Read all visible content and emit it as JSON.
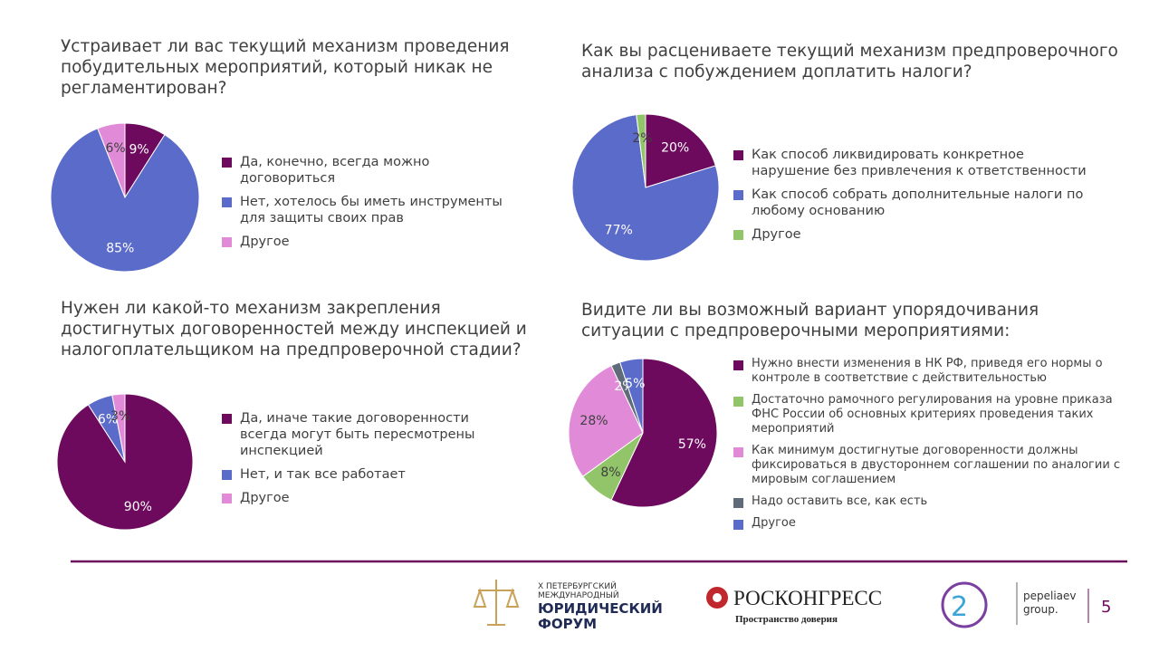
{
  "chart_data": [
    {
      "type": "pie",
      "title": "Устраивает ли вас текущий механизм проведения побудительных мероприятий, который никак не регламентирован?",
      "categories": [
        "Да, конечно, всегда можно договориться",
        "Нет, хотелось бы иметь инструменты для защиты своих прав",
        "Другое"
      ],
      "values": [
        9,
        85,
        6
      ],
      "value_labels": [
        "9%",
        "85%",
        "6%"
      ],
      "colors": [
        "#6d0a5e",
        "#5b6bc9",
        "#e08ad8"
      ]
    },
    {
      "type": "pie",
      "title": "Как вы расцениваете текущий механизм предпроверочного анализа с побуждением доплатить налоги?",
      "categories": [
        "Как способ ликвидировать конкретное нарушение без привлечения к ответственности",
        "Как способ собрать дополнительные налоги по любому основанию",
        "Другое"
      ],
      "values": [
        20,
        77,
        2
      ],
      "value_labels": [
        "20%",
        "77%",
        "2%"
      ],
      "colors": [
        "#6d0a5e",
        "#5b6bc9",
        "#92c46a"
      ]
    },
    {
      "type": "pie",
      "title": "Нужен ли какой-то механизм закрепления достигнутых договоренностей между инспекцией и налогоплательщиком на предпроверочной стадии?",
      "categories": [
        "Да, иначе такие договоренности всегда могут быть пересмотрены инспекцией",
        "Нет, и так все работает",
        "Другое"
      ],
      "values": [
        90,
        6,
        3
      ],
      "value_labels": [
        "90%",
        "6%",
        "3%"
      ],
      "colors": [
        "#6d0a5e",
        "#5b6bc9",
        "#e08ad8"
      ]
    },
    {
      "type": "pie",
      "title": "Видите ли вы возможный вариант упорядочивания ситуации с предпроверочными мероприятиями:",
      "categories": [
        "Нужно внести изменения в НК РФ, приведя его нормы о контроле в соответствие с действительностью",
        "Достаточно рамочного регулирования на уровне приказа ФНС России об основных критериях проведения таких мероприятий",
        "Как минимум достигнутые договоренности должны фиксироваться в двустороннем соглашении по аналогии с мировым соглашением",
        "Надо оставить все, как есть",
        "Другое"
      ],
      "values": [
        57,
        8,
        28,
        2,
        5
      ],
      "value_labels": [
        "57%",
        "8%",
        "28%",
        "2%",
        "5%"
      ],
      "colors": [
        "#6d0a5e",
        "#92c46a",
        "#e08ad8",
        "#5f6b78",
        "#5b6bc9"
      ]
    }
  ],
  "footer": {
    "forum_lines": [
      "X ПЕТЕРБУРГСКИЙ",
      "МЕЖДУНАРОДНЫЙ",
      "ЮРИДИЧЕСКИЙ",
      "ФОРУМ"
    ],
    "roscongress": "РОСКОНГРЕСС",
    "roscongress_slogan": "Пространство доверия",
    "pepeliaev": [
      "pepeliaev",
      "group."
    ],
    "page_number": "5"
  }
}
